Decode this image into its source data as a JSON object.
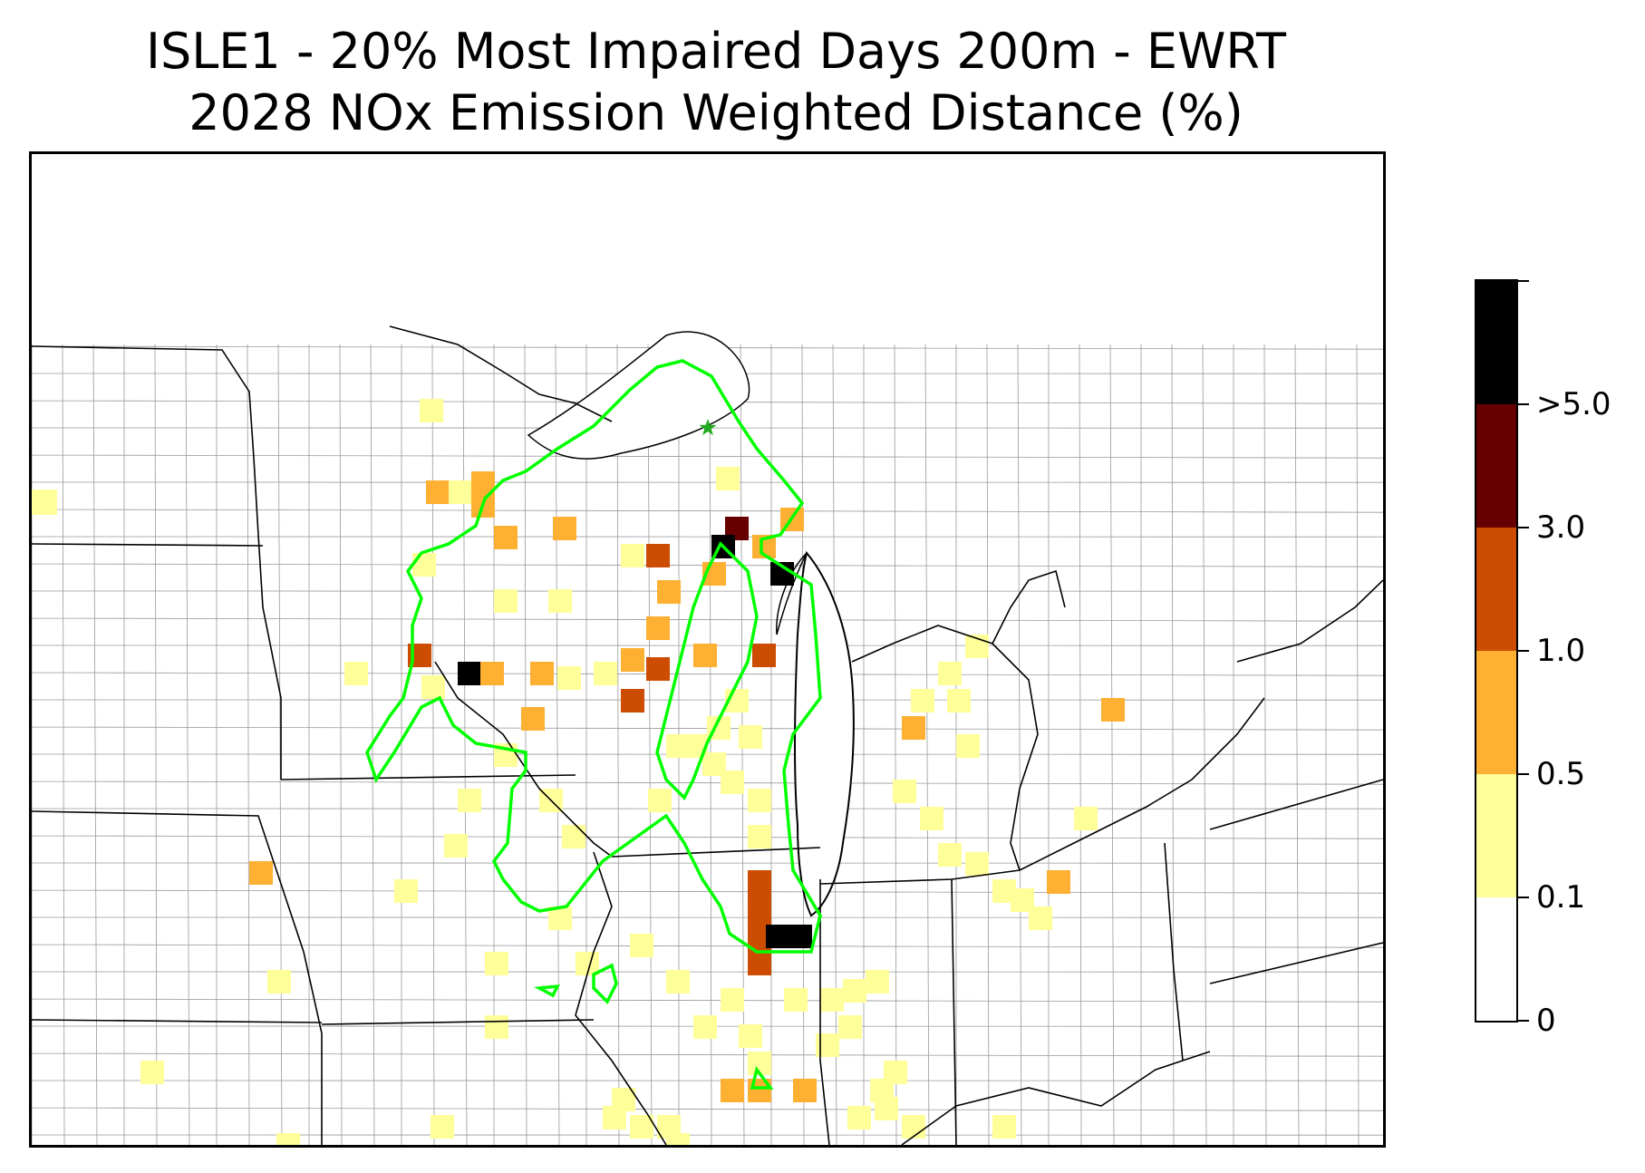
{
  "title": {
    "line1": "ISLE1 - 20% Most Impaired Days 200m - EWRT",
    "line2": "2028 NOx Emission Weighted Distance (%)"
  },
  "colorbar": {
    "labels": [
      "0",
      "0.1",
      "0.5",
      "1.0",
      "3.0",
      ">5.0"
    ],
    "colors": [
      "#ffffff",
      "#ffff99",
      "#fdb032",
      "#cc4c02",
      "#660000",
      "#000000"
    ],
    "outline_color": "#000000"
  },
  "map": {
    "contour_color": "#00ff00",
    "receptor_marker_color": "#22aa22",
    "state_border_color": "#000000",
    "county_border_color": "#999999",
    "receptor_icon": "star-icon"
  }
}
